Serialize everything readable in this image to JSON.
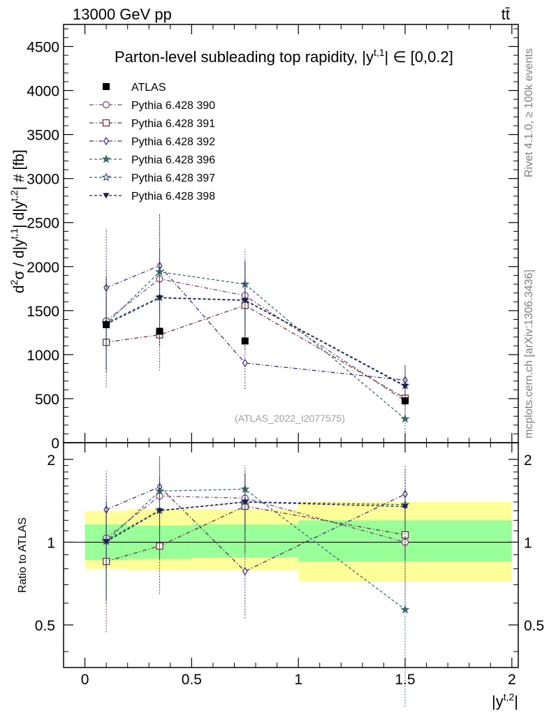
{
  "header": {
    "left_label": "13000 GeV pp",
    "right_label": "tt̄"
  },
  "side_labels": {
    "rivet": "Rivet 4.1.0, ≥ 100k events",
    "mcplots": "mcplots.cern.ch [arXiv:1306.3436]"
  },
  "chart_data": {
    "type": "scatter",
    "title": "Parton-level subleading top rapidity, |y",
    "title_sup": "t,1",
    "title_suffix": "| ∈ [0,0.2]",
    "watermark": "(ATLAS_2022_I2077575)",
    "xlabel": "|y",
    "xlabel_sup": "t,2",
    "xlabel_end": "|",
    "ylabel_parts": [
      "d",
      "2",
      "σ / d|y",
      "t,1",
      "| d|y",
      "t,2",
      "| # [fb]"
    ],
    "ratio_ylabel": "Ratio to ATLAS",
    "xlim": [
      -0.1,
      2.03
    ],
    "ylim": [
      0,
      4750
    ],
    "ratio_ylim": [
      0.35,
      2.3
    ],
    "x_ticks": [
      "0",
      "0.5",
      "1",
      "1.5",
      "2"
    ],
    "x_tick_values": [
      0,
      0.5,
      1,
      1.5,
      2
    ],
    "y_ticks": [
      "0",
      "500",
      "1000",
      "1500",
      "2000",
      "2500",
      "3000",
      "3500",
      "4000",
      "4500"
    ],
    "y_tick_values": [
      0,
      500,
      1000,
      1500,
      2000,
      2500,
      3000,
      3500,
      4000,
      4500
    ],
    "ratio_ticks": [
      "0.5",
      "1",
      "2"
    ],
    "ratio_tick_values": [
      0.5,
      1,
      2
    ],
    "x": [
      0.1,
      0.35,
      0.75,
      1.5
    ],
    "bins": [
      [
        0,
        0.2
      ],
      [
        0.2,
        0.5
      ],
      [
        0.5,
        1.0
      ],
      [
        1.0,
        2.0
      ]
    ],
    "data": {
      "name": "ATLAS",
      "values": [
        1340,
        1265,
        1155,
        475
      ]
    },
    "ratio_bands": {
      "inner": [
        [
          0.86,
          1.16
        ],
        [
          0.87,
          1.15
        ],
        [
          0.88,
          1.16
        ],
        [
          0.85,
          1.2
        ]
      ],
      "outer": [
        [
          0.8,
          1.3
        ],
        [
          0.79,
          1.32
        ],
        [
          0.79,
          1.32
        ],
        [
          0.72,
          1.4
        ]
      ]
    },
    "series": [
      {
        "name": "Pythia 6.428 390",
        "color": "#7a4a78",
        "marker": "circle-open",
        "values": [
          1385,
          1860,
          1670,
          475
        ],
        "err": [
          [
            800,
            1960
          ],
          [
            1270,
            2450
          ],
          [
            1270,
            2090
          ],
          [
            280,
            660
          ]
        ]
      },
      {
        "name": "Pythia 6.428 391",
        "color": "#6a3440",
        "marker": "square-open",
        "values": [
          1140,
          1225,
          1560,
          505
        ],
        "err": [
          [
            630,
            1660
          ],
          [
            820,
            1630
          ],
          [
            1060,
            2060
          ],
          [
            320,
            700
          ]
        ]
      },
      {
        "name": "Pythia 6.428 392",
        "color": "#4a2a7a",
        "marker": "diamond-open",
        "values": [
          1760,
          2010,
          905,
          710
        ],
        "err": [
          [
            1090,
            2430
          ],
          [
            1430,
            2590
          ],
          [
            610,
            1200
          ],
          [
            520,
            900
          ]
        ]
      },
      {
        "name": "Pythia 6.428 396",
        "color": "#3a6a72",
        "marker": "star-filled",
        "values": [
          1350,
          1940,
          1800,
          270
        ],
        "err": [
          [
            820,
            1880
          ],
          [
            1280,
            2600
          ],
          [
            1400,
            2200
          ],
          [
            120,
            420
          ]
        ]
      },
      {
        "name": "Pythia 6.428 397",
        "color": "#3a587a",
        "marker": "star-open",
        "values": [
          1360,
          1650,
          1620,
          650
        ],
        "err": [
          [
            840,
            1880
          ],
          [
            1110,
            2190
          ],
          [
            1180,
            2060
          ],
          [
            420,
            880
          ]
        ]
      },
      {
        "name": "Pythia 6.428 398",
        "color": "#1c1f4a",
        "marker": "triangle-down-filled",
        "values": [
          1345,
          1645,
          1615,
          640
        ],
        "err": [
          [
            830,
            1860
          ],
          [
            1100,
            2190
          ],
          [
            1170,
            2060
          ],
          [
            410,
            870
          ]
        ]
      }
    ]
  }
}
